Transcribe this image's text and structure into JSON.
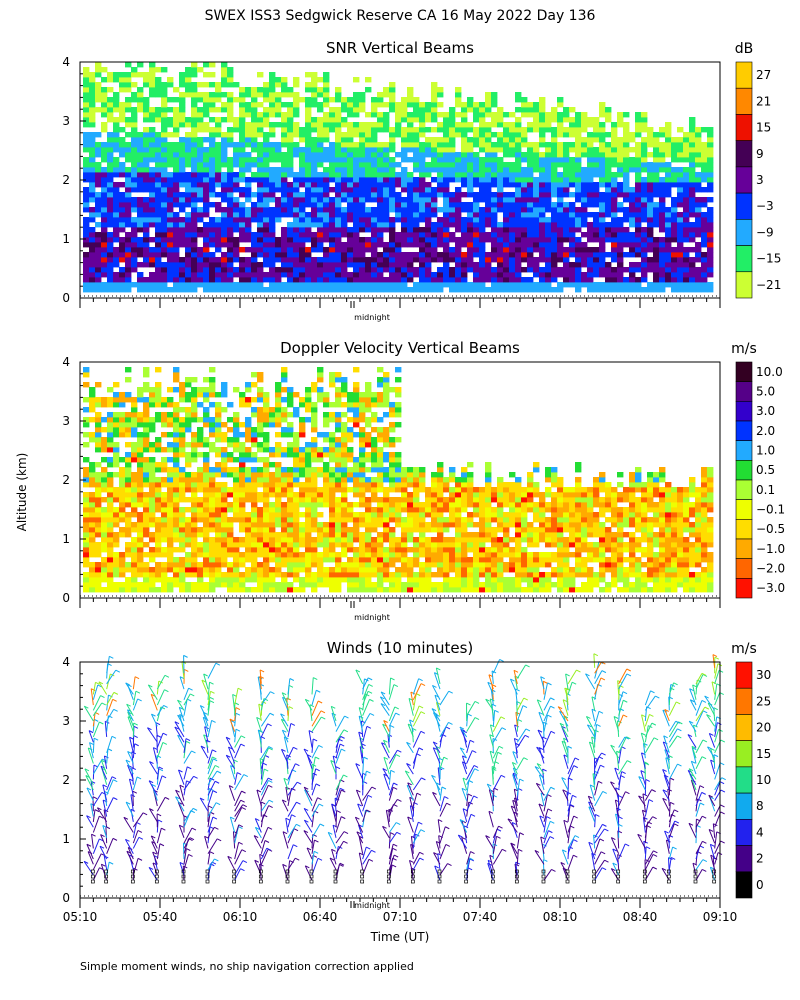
{
  "figure": {
    "title": "SWEX ISS3 Sedgwick Reserve CA  16 May 2022 Day 136",
    "shared_ylabel": "Altitude (km)",
    "xlabel": "Time (UT)",
    "footnote": "Simple moment winds, no ship navigation correction applied",
    "midnight_label": "midnight"
  },
  "chart_data": [
    {
      "type": "heatmap",
      "title": "SNR Vertical Beams",
      "colorbar_unit": "dB",
      "ylim": [
        0,
        4
      ],
      "yticks": [
        "0",
        "1",
        "2",
        "3",
        "4"
      ],
      "xlim": [
        "05:10",
        "09:10"
      ],
      "x_range_minutes_utc": [
        310,
        550
      ],
      "midnight_marker_minutes": 412,
      "colorbar_labels": [
        "27",
        "21",
        "15",
        "9",
        "3",
        "−3",
        "−9",
        "−15",
        "−21"
      ],
      "colorbar_colors": [
        "#ffcc00",
        "#ff8800",
        "#ee1100",
        "#440055",
        "#660099",
        "#0033ff",
        "#22aaff",
        "#22ee66",
        "#ccff33"
      ]
    },
    {
      "type": "heatmap",
      "title": "Doppler Velocity Vertical Beams",
      "colorbar_unit": "m/s",
      "ylim": [
        0,
        4
      ],
      "yticks": [
        "0",
        "1",
        "2",
        "3",
        "4"
      ],
      "xlim": [
        "05:10",
        "09:10"
      ],
      "x_range_minutes_utc": [
        310,
        550
      ],
      "midnight_marker_minutes": 412,
      "colorbar_labels": [
        "10.0",
        "5.0",
        "3.0",
        "2.0",
        "1.0",
        "0.5",
        "0.1",
        "−0.1",
        "−0.5",
        "−1.0",
        "−2.0",
        "−3.0"
      ],
      "colorbar_colors": [
        "#330022",
        "#550088",
        "#3300cc",
        "#0033ff",
        "#22aaff",
        "#22dd33",
        "#aaff33",
        "#eeff00",
        "#ffdd00",
        "#ffaa00",
        "#ff6600",
        "#ff1100"
      ]
    },
    {
      "type": "scatter",
      "title": "Winds (10 minutes)",
      "colorbar_unit": "m/s",
      "ylim": [
        0,
        4
      ],
      "yticks": [
        "0",
        "1",
        "2",
        "3",
        "4"
      ],
      "x_tick_labels": [
        "05:10",
        "05:40",
        "06:10",
        "06:40",
        "07:10",
        "07:40",
        "08:10",
        "08:40",
        "09:10"
      ],
      "x_range_minutes_utc": [
        310,
        550
      ],
      "midnight_marker_minutes": 412,
      "colorbar_labels": [
        "30",
        "25",
        "20",
        "15",
        "10",
        "8",
        "4",
        "2",
        "0"
      ],
      "colorbar_colors": [
        "#ff1100",
        "#ff7700",
        "#ffbb00",
        "#99ee22",
        "#22dd88",
        "#11aaee",
        "#2222ee",
        "#440088",
        "#000000"
      ],
      "profile_times_minutes_utc": [
        315,
        320,
        330,
        339,
        349,
        358,
        368,
        378,
        388,
        397,
        406,
        416,
        426,
        435,
        445,
        455,
        465,
        474,
        484,
        493,
        503,
        512,
        522,
        531,
        541,
        548
      ]
    }
  ]
}
